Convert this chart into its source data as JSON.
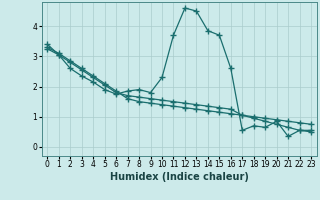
{
  "xlabel": "Humidex (Indice chaleur)",
  "bg_color": "#cceaea",
  "grid_color": "#aacccc",
  "line_color": "#1a6e6e",
  "xlim": [
    -0.5,
    23.5
  ],
  "ylim": [
    -0.3,
    4.8
  ],
  "xticks": [
    0,
    1,
    2,
    3,
    4,
    5,
    6,
    7,
    8,
    9,
    10,
    11,
    12,
    13,
    14,
    15,
    16,
    17,
    18,
    19,
    20,
    21,
    22,
    23
  ],
  "yticks": [
    0,
    1,
    2,
    3,
    4
  ],
  "series1_x": [
    0,
    1,
    2,
    3,
    4,
    5,
    6,
    7,
    8,
    9,
    10,
    11,
    12,
    13,
    14,
    15,
    16,
    17,
    18,
    19,
    20,
    21,
    22,
    23
  ],
  "series1_y": [
    3.4,
    3.05,
    2.6,
    2.35,
    2.15,
    1.9,
    1.75,
    1.85,
    1.9,
    1.8,
    2.3,
    3.7,
    4.6,
    4.5,
    3.85,
    3.7,
    2.6,
    0.55,
    0.7,
    0.65,
    0.85,
    0.35,
    0.55,
    0.55
  ],
  "series2_x": [
    0,
    1,
    2,
    3,
    4,
    5,
    6,
    7,
    8,
    9,
    10,
    11,
    12,
    13,
    14,
    15,
    16,
    17,
    18,
    19,
    20,
    21,
    22,
    23
  ],
  "series2_y": [
    3.3,
    3.1,
    2.85,
    2.6,
    2.35,
    2.1,
    1.85,
    1.6,
    1.5,
    1.45,
    1.4,
    1.35,
    1.3,
    1.25,
    1.2,
    1.15,
    1.1,
    1.05,
    1.0,
    0.95,
    0.9,
    0.85,
    0.8,
    0.75
  ],
  "series3_x": [
    0,
    1,
    2,
    3,
    4,
    5,
    6,
    7,
    8,
    9,
    10,
    11,
    12,
    13,
    14,
    15,
    16,
    17,
    18,
    19,
    20,
    21,
    22,
    23
  ],
  "series3_y": [
    3.25,
    3.05,
    2.8,
    2.55,
    2.3,
    2.05,
    1.8,
    1.7,
    1.65,
    1.6,
    1.55,
    1.5,
    1.45,
    1.4,
    1.35,
    1.3,
    1.25,
    1.05,
    0.95,
    0.85,
    0.75,
    0.65,
    0.55,
    0.5
  ],
  "marker": "+",
  "marker_size": 4,
  "linewidth": 0.9,
  "xlabel_fontsize": 7,
  "xlabel_fontweight": "bold",
  "tick_fontsize": 5.5
}
